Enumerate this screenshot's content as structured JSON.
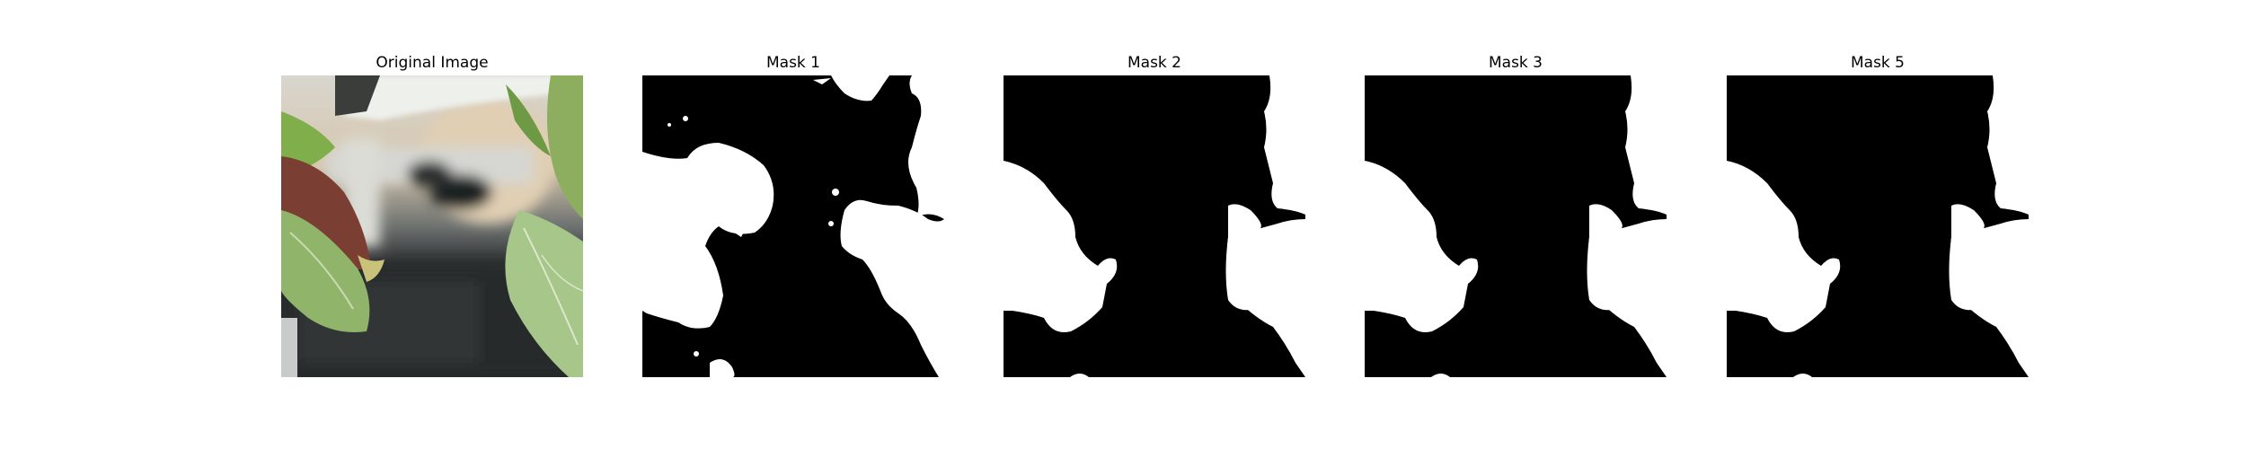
{
  "figure": {
    "panels": [
      {
        "title": "Original Image"
      },
      {
        "title": "Mask 1"
      },
      {
        "title": "Mask 2"
      },
      {
        "title": "Mask 3"
      },
      {
        "title": "Mask 5"
      }
    ]
  },
  "colors": {
    "mask_background": "#000000",
    "mask_foreground": "#ffffff",
    "leaf_green": "#6f9a45",
    "leaf_light": "#a9c98a",
    "leaf_red": "#8a4a3a",
    "pipe_white": "#e9ece8",
    "background_beige": "#d9cbb5",
    "background_dark": "#2c2e30"
  }
}
